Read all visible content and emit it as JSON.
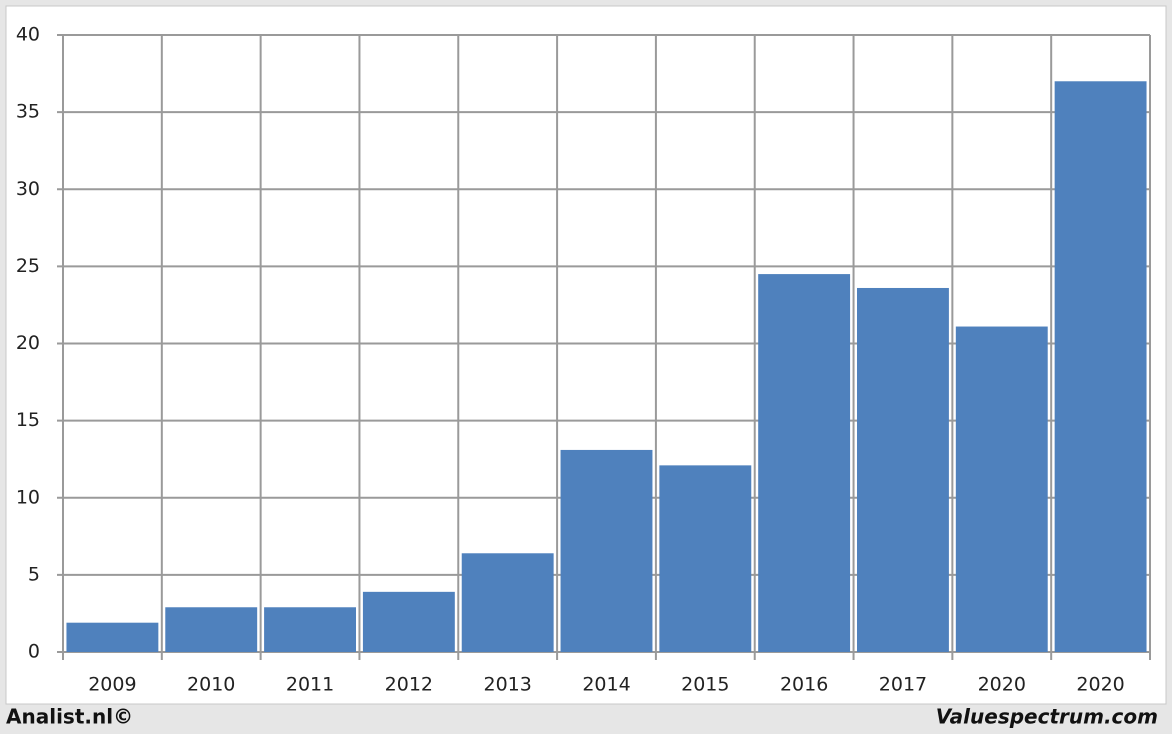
{
  "chart_data": {
    "type": "bar",
    "categories": [
      "2009",
      "2010",
      "2011",
      "2012",
      "2013",
      "2014",
      "2015",
      "2016",
      "2017",
      "2020",
      "2020"
    ],
    "values": [
      1.9,
      2.9,
      2.9,
      3.9,
      6.4,
      13.1,
      12.1,
      24.5,
      23.6,
      21.1,
      37.0
    ],
    "color": "#4f81bd",
    "ylim": [
      0,
      40
    ],
    "yticks": [
      0,
      5,
      10,
      15,
      20,
      25,
      30,
      35,
      40
    ],
    "grid": true,
    "source_left": "Analist.nl©",
    "source_right": "Valuespectrum.com"
  }
}
